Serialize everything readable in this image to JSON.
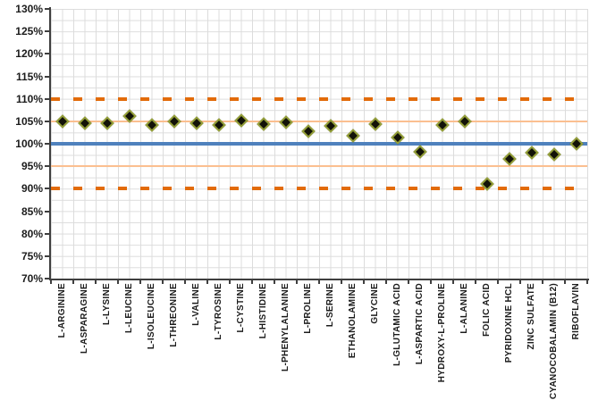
{
  "chart_data": {
    "type": "scatter",
    "title": "",
    "xlabel": "",
    "ylabel": "",
    "ylim": [
      70,
      130
    ],
    "y_tick_step": 5,
    "y_tick_suffix": "%",
    "legend": "none",
    "grid": {
      "horizontal_minor_step_pct": 2.5,
      "vertical_lines_per_category": 2,
      "color": "#dcdcdc"
    },
    "categories": [
      "L-ARGININE",
      "L-ASPARAGINE",
      "L-LYSINE",
      "L-LEUCINE",
      "L-ISOLEUCINE",
      "L-THREONINE",
      "L-VALINE",
      "L-TYROSINE",
      "L-CYSTINE",
      "L-HISTIDINE",
      "L-PHENYLALANINE",
      "L-PROLINE",
      "L-SERINE",
      "ETHANOLAMINE",
      "GLYCINE",
      "L-GLUTAMIC ACID",
      "L-ASPARTIC ACID",
      "HYDROXY-L-PROLINE",
      "L-ALANINE",
      "FOLIC ACID",
      "PYRIDOXINE HCL",
      "ZINC SULFATE",
      "CYANOCOBALAMIN (B12)",
      "RIBOFLAVIN"
    ],
    "values": [
      105.0,
      104.5,
      104.6,
      106.2,
      104.1,
      104.9,
      104.5,
      104.2,
      105.1,
      104.3,
      104.8,
      102.7,
      103.9,
      101.7,
      104.3,
      101.3,
      98.3,
      104.1,
      104.9,
      91.0,
      96.7,
      98.0,
      97.6,
      100.0
    ],
    "marker": {
      "shape": "diamond",
      "fill": "#131308",
      "outline": "#96a13a"
    },
    "reference_lines": [
      {
        "name": "upper-control-limit",
        "value": 110,
        "style": "dashed",
        "color": "#e26b0a"
      },
      {
        "name": "upper-warning-limit",
        "value": 105,
        "style": "thin",
        "color": "#fbbf90"
      },
      {
        "name": "target",
        "value": 100,
        "style": "solid",
        "color": "#4f81bd"
      },
      {
        "name": "lower-warning-limit",
        "value": 95,
        "style": "thin",
        "color": "#fbbf90"
      },
      {
        "name": "lower-control-limit",
        "value": 90,
        "style": "dashed",
        "color": "#e26b0a"
      }
    ],
    "axis_color": "#3f3f3f"
  }
}
